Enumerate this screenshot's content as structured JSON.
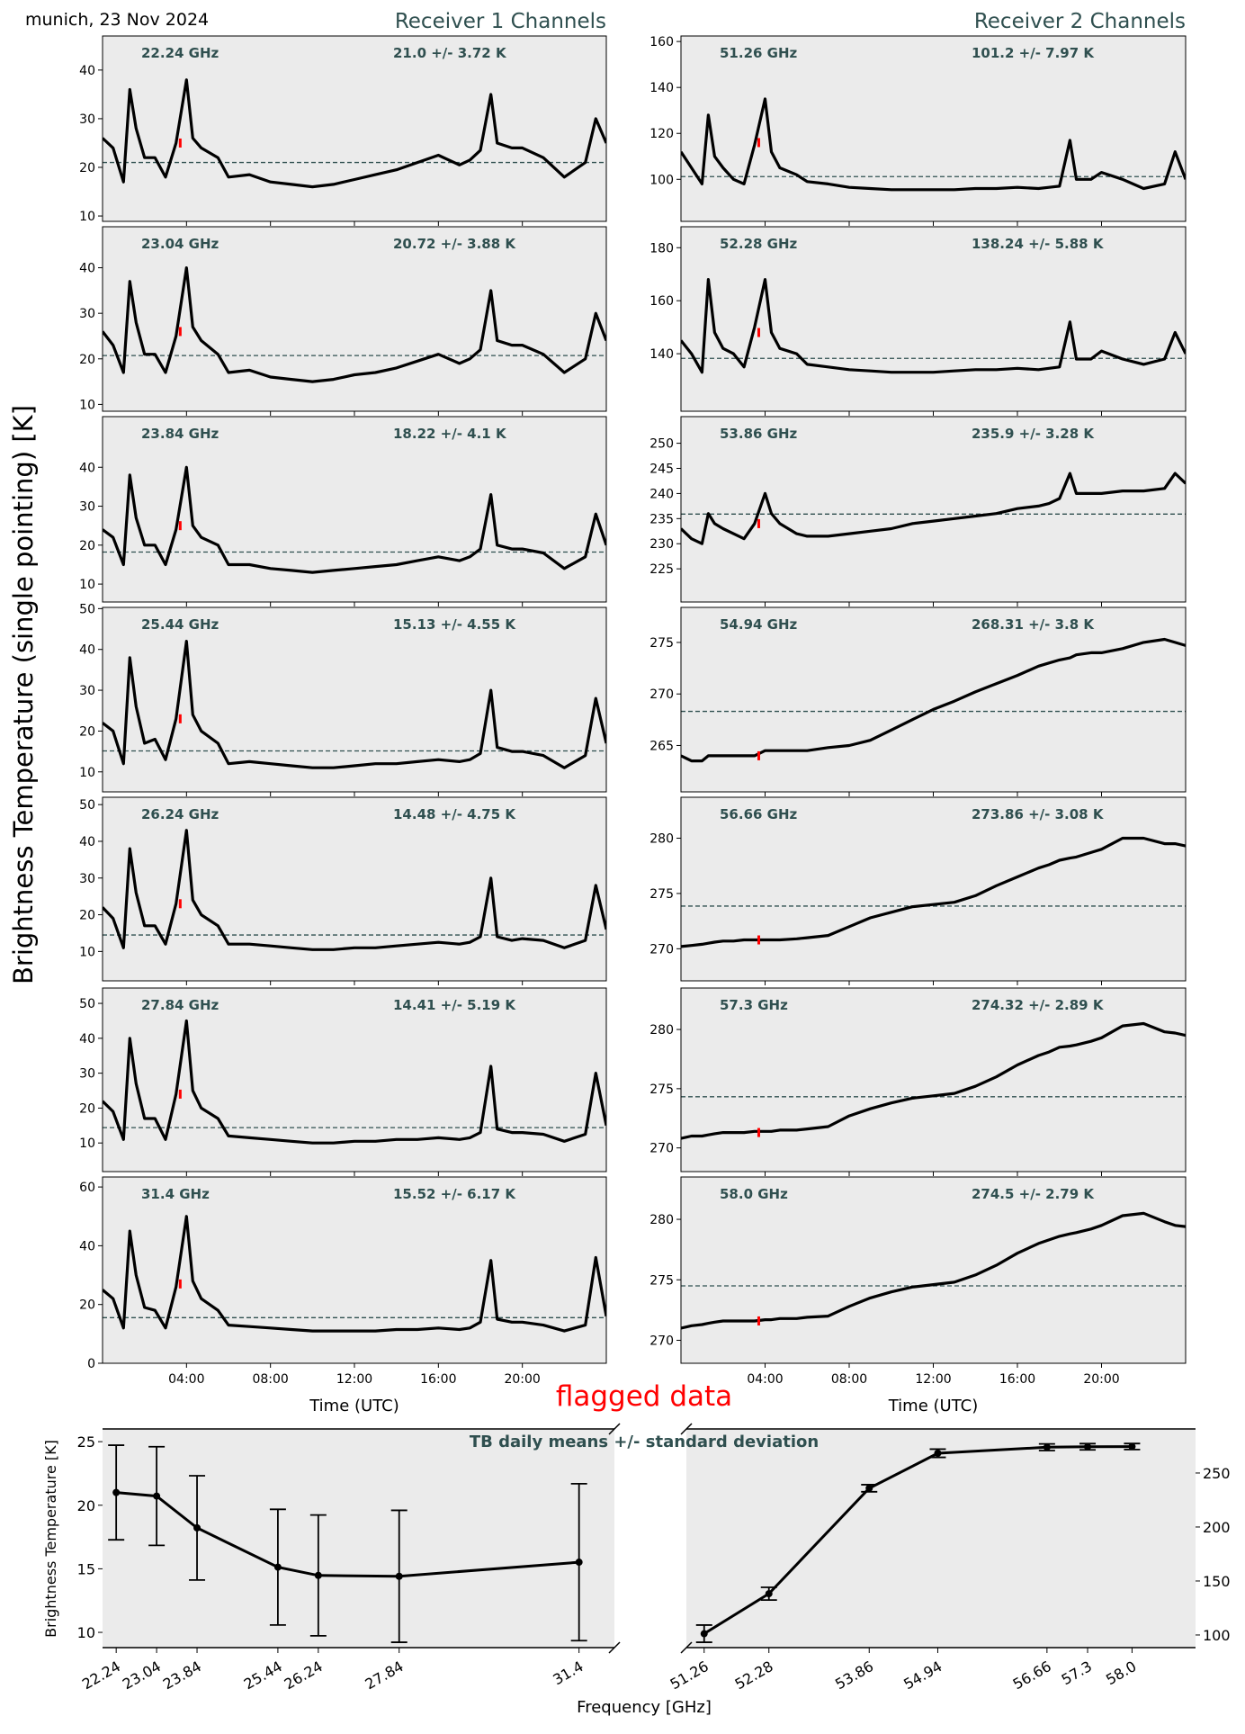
{
  "header": {
    "location_date": "munich, 23 Nov 2024",
    "receiver1_title": "Receiver 1 Channels",
    "receiver2_title": "Receiver 2 Channels",
    "ylabel": "Brightness Temperature (single pointing) [K]",
    "flagged_label": "flagged data"
  },
  "colors": {
    "background": "#ebebeb",
    "text_accent": "#2f4f4f",
    "series": "#000000",
    "flagged": "#ff0000"
  },
  "chart_data": [
    {
      "type": "line",
      "title": "Receiver 1 Channels",
      "xlabel": "Time (UTC)",
      "xlim": [
        0,
        24
      ],
      "xtick_hours": [
        4,
        8,
        12,
        16,
        20
      ],
      "xtick_labels": [
        "04:00",
        "08:00",
        "12:00",
        "16:00",
        "20:00"
      ],
      "x_hours": [
        0,
        0.5,
        1,
        1.3,
        1.6,
        2,
        2.5,
        3,
        3.5,
        4,
        4.3,
        4.7,
        5.5,
        6,
        7,
        8,
        9,
        10,
        11,
        12,
        13,
        14,
        15,
        16,
        17,
        17.5,
        18,
        18.5,
        18.8,
        19.5,
        20,
        21,
        22,
        23,
        23.5,
        24
      ],
      "panels": [
        {
          "label": "22.24 GHz",
          "stats": "21.0 +/- 3.72 K",
          "mean": 21.0,
          "ylim": [
            8.9,
            47
          ],
          "yticks": [
            10,
            20,
            30,
            40
          ],
          "flagged": {
            "t": 3.7,
            "value": 25
          },
          "values": [
            26,
            24,
            17,
            36,
            28,
            22,
            22,
            18,
            25,
            38,
            26,
            24,
            22,
            18,
            18.5,
            17,
            16.5,
            16,
            16.5,
            17.5,
            18.5,
            19.5,
            21,
            22.5,
            20.5,
            21.5,
            23.5,
            35,
            25,
            24,
            24,
            22,
            18,
            21,
            30,
            25
          ]
        },
        {
          "label": "23.04 GHz",
          "stats": "20.72 +/- 3.88 K",
          "mean": 20.72,
          "ylim": [
            8.5,
            49
          ],
          "yticks": [
            10,
            20,
            30,
            40
          ],
          "flagged": {
            "t": 3.7,
            "value": 26
          },
          "values": [
            26,
            23,
            17,
            37,
            28,
            21,
            21,
            17,
            25,
            40,
            27,
            24,
            21,
            17,
            17.5,
            16,
            15.5,
            15,
            15.5,
            16.5,
            17,
            18,
            19.5,
            21,
            19,
            20,
            22,
            35,
            24,
            23,
            23,
            21,
            17,
            20,
            30,
            24
          ]
        },
        {
          "label": "23.84 GHz",
          "stats": "18.22 +/- 4.1 K",
          "mean": 18.22,
          "ylim": [
            5.4,
            53
          ],
          "yticks": [
            10,
            20,
            30,
            40
          ],
          "flagged": {
            "t": 3.7,
            "value": 25
          },
          "values": [
            24,
            22,
            15,
            38,
            27,
            20,
            20,
            15,
            24,
            40,
            25,
            22,
            20,
            15,
            15,
            14,
            13.5,
            13,
            13.5,
            14,
            14.5,
            15,
            16,
            17,
            16,
            17,
            19,
            33,
            20,
            19,
            19,
            18,
            14,
            17,
            28,
            20
          ]
        },
        {
          "label": "25.44 GHz",
          "stats": "15.13 +/- 4.55 K",
          "mean": 15.13,
          "ylim": [
            5.1,
            50.3
          ],
          "yticks": [
            10,
            20,
            30,
            40,
            50
          ],
          "flagged": {
            "t": 3.7,
            "value": 23
          },
          "values": [
            22,
            20,
            12,
            38,
            26,
            17,
            18,
            13,
            23,
            42,
            24,
            20,
            17,
            12,
            12.5,
            12,
            11.5,
            11,
            11,
            11.5,
            12,
            12,
            12.5,
            13,
            12.5,
            13,
            14.5,
            30,
            16,
            15,
            15,
            14,
            11,
            14,
            28,
            17
          ]
        },
        {
          "label": "26.24 GHz",
          "stats": "14.48 +/- 4.75 K",
          "mean": 14.48,
          "ylim": [
            2,
            52
          ],
          "yticks": [
            10,
            20,
            30,
            40,
            50
          ],
          "flagged": {
            "t": 3.7,
            "value": 23
          },
          "values": [
            22,
            19,
            11,
            38,
            26,
            17,
            17,
            12,
            23,
            43,
            24,
            20,
            17,
            12,
            12,
            11.5,
            11,
            10.5,
            10.5,
            11,
            11,
            11.5,
            12,
            12.5,
            12,
            12.5,
            14,
            30,
            14,
            13,
            13.5,
            13,
            11,
            13,
            28,
            16
          ]
        },
        {
          "label": "27.84 GHz",
          "stats": "14.41 +/- 5.19 K",
          "mean": 14.41,
          "ylim": [
            1.8,
            54.4
          ],
          "yticks": [
            10,
            20,
            30,
            40,
            50
          ],
          "flagged": {
            "t": 3.7,
            "value": 24
          },
          "values": [
            22,
            19,
            11,
            40,
            27,
            17,
            17,
            11,
            24,
            45,
            25,
            20,
            17,
            12,
            11.5,
            11,
            10.5,
            10,
            10,
            10.5,
            10.5,
            11,
            11,
            11.5,
            11,
            11.5,
            13,
            32,
            14,
            13,
            13,
            12.5,
            10.5,
            12.5,
            30,
            15
          ]
        },
        {
          "label": "31.4 GHz",
          "stats": "15.52 +/- 6.17 K",
          "mean": 15.52,
          "ylim": [
            0,
            63.4
          ],
          "yticks": [
            0,
            20,
            40,
            60
          ],
          "flagged": {
            "t": 3.7,
            "value": 27
          },
          "values": [
            25,
            22,
            12,
            45,
            30,
            19,
            18,
            12,
            26,
            50,
            28,
            22,
            18,
            13,
            12.5,
            12,
            11.5,
            11,
            11,
            11,
            11,
            11.5,
            11.5,
            12,
            11.5,
            12,
            14,
            35,
            15,
            14,
            14,
            13,
            11,
            13,
            36,
            16
          ]
        }
      ]
    },
    {
      "type": "line",
      "title": "Receiver 2 Channels",
      "xlabel": "Time (UTC)",
      "xlim": [
        0,
        24
      ],
      "xtick_hours": [
        4,
        8,
        12,
        16,
        20
      ],
      "xtick_labels": [
        "04:00",
        "08:00",
        "12:00",
        "16:00",
        "20:00"
      ],
      "x_hours": [
        0,
        0.5,
        1,
        1.3,
        1.6,
        2,
        2.5,
        3,
        3.5,
        4,
        4.3,
        4.7,
        5.5,
        6,
        7,
        8,
        9,
        10,
        11,
        12,
        13,
        14,
        15,
        16,
        17,
        17.5,
        18,
        18.5,
        18.8,
        19.5,
        20,
        21,
        22,
        23,
        23.5,
        24
      ],
      "panels": [
        {
          "label": "51.26 GHz",
          "stats": "101.2 +/- 7.97 K",
          "mean": 101.2,
          "ylim": [
            81.7,
            162.4
          ],
          "yticks": [
            100,
            120,
            140,
            160
          ],
          "flagged": {
            "t": 3.7,
            "value": 116
          },
          "values": [
            112,
            105,
            98,
            128,
            110,
            105,
            100,
            98,
            115,
            135,
            112,
            105,
            102,
            99,
            98,
            96.5,
            96,
            95.5,
            95.5,
            95.5,
            95.5,
            96,
            96,
            96.5,
            96,
            96.5,
            97,
            117,
            100,
            100,
            103,
            100,
            96,
            98,
            112,
            100
          ]
        },
        {
          "label": "52.28 GHz",
          "stats": "138.24 +/- 5.88 K",
          "mean": 138.24,
          "ylim": [
            118.3,
            187.9
          ],
          "yticks": [
            140,
            160,
            180
          ],
          "flagged": {
            "t": 3.7,
            "value": 148
          },
          "values": [
            145,
            140,
            133,
            168,
            148,
            142,
            140,
            135,
            150,
            168,
            148,
            142,
            140,
            136,
            135,
            134,
            133.5,
            133,
            133,
            133,
            133.5,
            134,
            134,
            134.5,
            134,
            134.5,
            135,
            152,
            138,
            138,
            141,
            138,
            136,
            138,
            148,
            140
          ]
        },
        {
          "label": "53.86 GHz",
          "stats": "235.9 +/- 3.28 K",
          "mean": 235.9,
          "ylim": [
            218.4,
            255.3
          ],
          "yticks": [
            225,
            230,
            235,
            240,
            245,
            250
          ],
          "flagged": {
            "t": 3.7,
            "value": 234
          },
          "values": [
            233,
            231,
            230,
            236,
            234,
            233,
            232,
            231,
            234,
            240,
            236,
            234,
            232,
            231.5,
            231.5,
            232,
            232.5,
            233,
            234,
            234.5,
            235,
            235.5,
            236,
            237,
            237.5,
            238,
            239,
            244,
            240,
            240,
            240,
            240.5,
            240.5,
            241,
            244,
            242
          ]
        },
        {
          "label": "54.94 GHz",
          "stats": "268.31 +/- 3.8 K",
          "mean": 268.31,
          "ylim": [
            260.5,
            278.4
          ],
          "yticks": [
            265,
            270,
            275
          ],
          "flagged": {
            "t": 3.7,
            "value": 264
          },
          "values": [
            264,
            263.5,
            263.5,
            264,
            264,
            264,
            264,
            264,
            264,
            264.5,
            264.5,
            264.5,
            264.5,
            264.5,
            264.8,
            265,
            265.5,
            266.5,
            267.5,
            268.5,
            269.3,
            270.2,
            271,
            271.8,
            272.7,
            273,
            273.3,
            273.5,
            273.8,
            274,
            274,
            274.4,
            275,
            275.3,
            275,
            274.7
          ]
        },
        {
          "label": "56.66 GHz",
          "stats": "273.86 +/- 3.08 K",
          "mean": 273.86,
          "ylim": [
            267.1,
            283.7
          ],
          "yticks": [
            270,
            275,
            280
          ],
          "flagged": {
            "t": 3.7,
            "value": 270.8
          },
          "values": [
            270.2,
            270.3,
            270.4,
            270.5,
            270.6,
            270.7,
            270.7,
            270.8,
            270.8,
            270.8,
            270.8,
            270.8,
            270.9,
            271,
            271.2,
            272,
            272.8,
            273.3,
            273.8,
            274,
            274.2,
            274.8,
            275.7,
            276.5,
            277.3,
            277.6,
            278,
            278.2,
            278.3,
            278.7,
            279,
            280,
            280,
            279.5,
            279.5,
            279.3
          ]
        },
        {
          "label": "57.3 GHz",
          "stats": "274.32 +/- 2.89 K",
          "mean": 274.32,
          "ylim": [
            268.0,
            283.5
          ],
          "yticks": [
            270,
            275,
            280
          ],
          "flagged": {
            "t": 3.7,
            "value": 271.3
          },
          "values": [
            270.8,
            271,
            271,
            271.1,
            271.2,
            271.3,
            271.3,
            271.3,
            271.4,
            271.4,
            271.4,
            271.5,
            271.5,
            271.6,
            271.8,
            272.7,
            273.3,
            273.8,
            274.2,
            274.4,
            274.6,
            275.2,
            276,
            277,
            277.8,
            278.1,
            278.5,
            278.6,
            278.7,
            279,
            279.3,
            280.3,
            280.5,
            279.8,
            279.7,
            279.5
          ]
        },
        {
          "label": "58.0 GHz",
          "stats": "274.5 +/- 2.79 K",
          "mean": 274.5,
          "ylim": [
            268.1,
            283.5
          ],
          "yticks": [
            270,
            275,
            280
          ],
          "flagged": {
            "t": 3.7,
            "value": 271.6
          },
          "values": [
            271,
            271.2,
            271.3,
            271.4,
            271.5,
            271.6,
            271.6,
            271.6,
            271.6,
            271.7,
            271.7,
            271.8,
            271.8,
            271.9,
            272,
            272.8,
            273.5,
            274,
            274.4,
            274.6,
            274.8,
            275.4,
            276.2,
            277.2,
            278,
            278.3,
            278.6,
            278.8,
            278.9,
            279.2,
            279.5,
            280.3,
            280.5,
            279.8,
            279.5,
            279.4
          ]
        }
      ]
    },
    {
      "type": "line",
      "title": "TB daily means +/- standard deviation",
      "xlabel": "Frequency [GHz]",
      "ylabel": "Brightness Temperature [K]",
      "left": {
        "frequencies": [
          22.24,
          23.04,
          23.84,
          25.44,
          26.24,
          27.84,
          31.4
        ],
        "xtick_labels": [
          "22.24",
          "23.04",
          "23.84",
          "25.44",
          "26.24",
          "27.84",
          "31.4"
        ],
        "means": [
          21.0,
          20.72,
          18.22,
          15.13,
          14.48,
          14.41,
          15.52
        ],
        "std": [
          3.72,
          3.88,
          4.1,
          4.55,
          4.75,
          5.19,
          6.17
        ],
        "xlim": [
          21.97,
          32.1
        ],
        "ylim": [
          8.8,
          26.0
        ],
        "yticks": [
          10,
          15,
          20,
          25
        ]
      },
      "right": {
        "frequencies": [
          51.26,
          52.28,
          53.86,
          54.94,
          56.66,
          57.3,
          58.0
        ],
        "xtick_labels": [
          "51.26",
          "52.28",
          "53.86",
          "54.94",
          "56.66",
          "57.3",
          "58.0"
        ],
        "means": [
          101.2,
          138.24,
          235.9,
          268.31,
          273.86,
          274.32,
          274.5
        ],
        "std": [
          7.97,
          5.88,
          3.28,
          3.8,
          3.08,
          2.89,
          2.79
        ],
        "xlim": [
          50.98,
          59.0
        ],
        "ylim": [
          88.3,
          290.8
        ],
        "yticks": [
          100,
          150,
          200,
          250
        ]
      }
    }
  ]
}
